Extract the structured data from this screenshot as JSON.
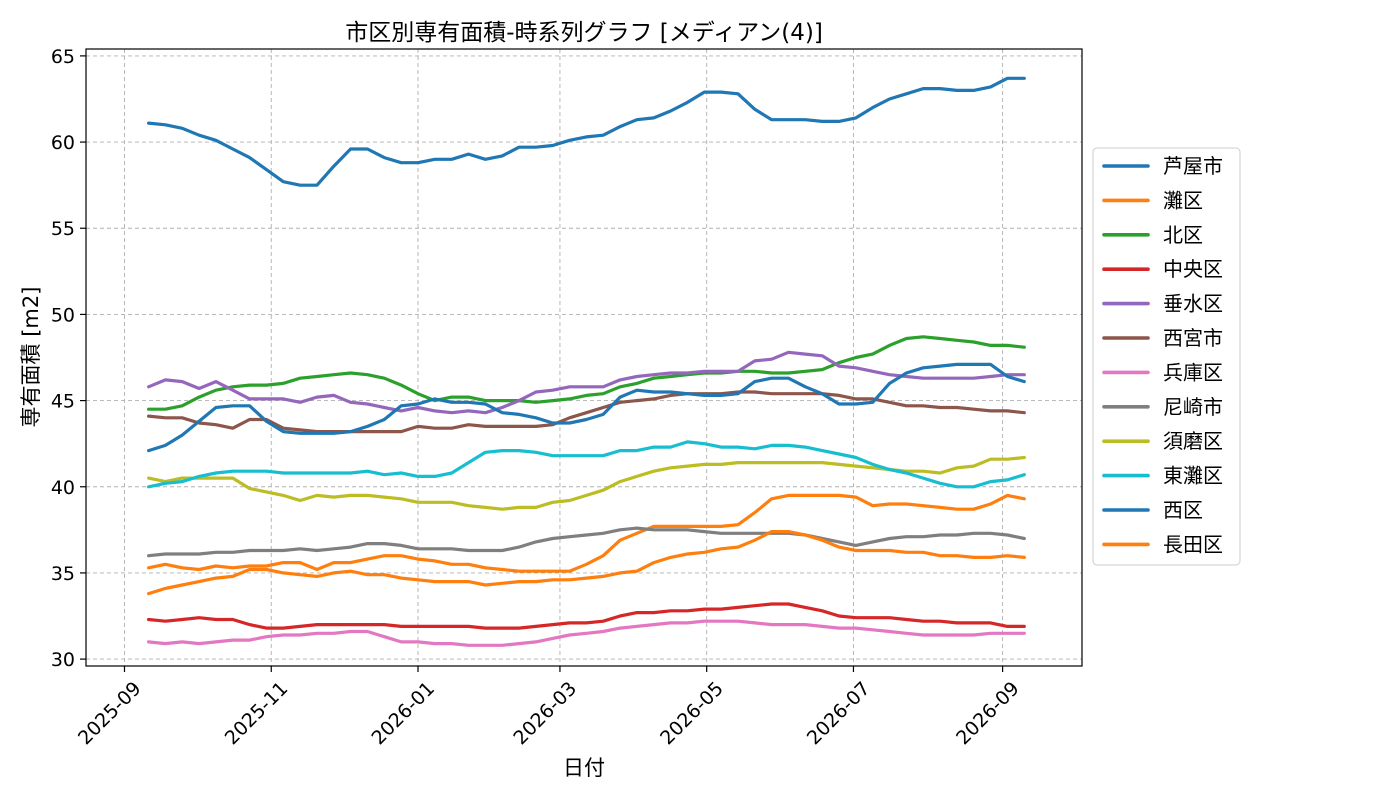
{
  "chart_data": {
    "type": "line",
    "title": "市区別専有面積-時系列グラフ [メディアン(4)]",
    "xlabel": "日付",
    "ylabel": "専有面積 [m2]",
    "ylim": [
      29.6,
      65.4
    ],
    "yticks": [
      30,
      35,
      40,
      45,
      50,
      55,
      60,
      65
    ],
    "xlim": [
      "2025-08-16",
      "2026-10-04"
    ],
    "xticks": [
      {
        "date": "2025-09-01",
        "label": "2025-09"
      },
      {
        "date": "2025-11-01",
        "label": "2025-11"
      },
      {
        "date": "2026-01-01",
        "label": "2026-01"
      },
      {
        "date": "2026-03-01",
        "label": "2026-03"
      },
      {
        "date": "2026-05-01",
        "label": "2026-05"
      },
      {
        "date": "2026-07-01",
        "label": "2026-07"
      },
      {
        "date": "2026-09-01",
        "label": "2026-09"
      }
    ],
    "grid": true,
    "legend_position": "right",
    "x": [
      "2025-09-11",
      "2025-09-18",
      "2025-09-25",
      "2025-10-02",
      "2025-10-09",
      "2025-10-16",
      "2025-10-23",
      "2025-10-30",
      "2025-11-06",
      "2025-11-13",
      "2025-11-20",
      "2025-11-27",
      "2025-12-04",
      "2025-12-11",
      "2025-12-18",
      "2025-12-25",
      "2026-01-01",
      "2026-01-08",
      "2026-01-15",
      "2026-01-22",
      "2026-01-29",
      "2026-02-05",
      "2026-02-12",
      "2026-02-19",
      "2026-02-26",
      "2026-03-05",
      "2026-03-12",
      "2026-03-19",
      "2026-03-26",
      "2026-04-02",
      "2026-04-09",
      "2026-04-16",
      "2026-04-23",
      "2026-04-30",
      "2026-05-07",
      "2026-05-14",
      "2026-05-21",
      "2026-05-28",
      "2026-06-04",
      "2026-06-11",
      "2026-06-18",
      "2026-06-25",
      "2026-07-02",
      "2026-07-09",
      "2026-07-16",
      "2026-07-23",
      "2026-07-30",
      "2026-08-06",
      "2026-08-13",
      "2026-08-20",
      "2026-08-27",
      "2026-09-03",
      "2026-09-10"
    ],
    "series": [
      {
        "name": "芦屋市",
        "color": "#1f77b4",
        "values": [
          61.1,
          61.0,
          60.8,
          60.4,
          60.1,
          59.6,
          59.1,
          58.4,
          57.7,
          57.5,
          57.5,
          58.6,
          59.6,
          59.6,
          59.1,
          58.8,
          58.8,
          59.0,
          59.0,
          59.3,
          59.0,
          59.2,
          59.7,
          59.7,
          59.8,
          60.1,
          60.3,
          60.4,
          60.9,
          61.3,
          61.4,
          61.8,
          62.3,
          62.9,
          62.9,
          62.8,
          61.9,
          61.3,
          61.3,
          61.3,
          61.2,
          61.2,
          61.4,
          62.0,
          62.5,
          62.8,
          63.1,
          63.1,
          63.0,
          63.0,
          63.2,
          63.7,
          63.7
        ]
      },
      {
        "name": "灘区",
        "color": "#ff7f0e",
        "values": [
          35.3,
          35.5,
          35.3,
          35.2,
          35.4,
          35.3,
          35.4,
          35.4,
          35.6,
          35.6,
          35.2,
          35.6,
          35.6,
          35.8,
          36.0,
          36.0,
          35.8,
          35.7,
          35.5,
          35.5,
          35.3,
          35.2,
          35.1,
          35.1,
          35.1,
          35.1,
          35.5,
          36.0,
          36.9,
          37.3,
          37.7,
          37.7,
          37.7,
          37.7,
          37.7,
          37.8,
          38.5,
          39.3,
          39.5,
          39.5,
          39.5,
          39.5,
          39.4,
          38.9,
          39.0,
          39.0,
          38.9,
          38.8,
          38.7,
          38.7,
          39.0,
          39.5,
          39.3
        ]
      },
      {
        "name": "北区",
        "color": "#2ca02c",
        "values": [
          44.5,
          44.5,
          44.7,
          45.2,
          45.6,
          45.8,
          45.9,
          45.9,
          46.0,
          46.3,
          46.4,
          46.5,
          46.6,
          46.5,
          46.3,
          45.9,
          45.4,
          45.0,
          45.2,
          45.2,
          45.0,
          45.0,
          45.0,
          44.9,
          45.0,
          45.1,
          45.3,
          45.4,
          45.8,
          46.0,
          46.3,
          46.4,
          46.5,
          46.6,
          46.6,
          46.7,
          46.7,
          46.6,
          46.6,
          46.7,
          46.8,
          47.2,
          47.5,
          47.7,
          48.2,
          48.6,
          48.7,
          48.6,
          48.5,
          48.4,
          48.2,
          48.2,
          48.1
        ]
      },
      {
        "name": "中央区",
        "color": "#d62728",
        "values": [
          32.3,
          32.2,
          32.3,
          32.4,
          32.3,
          32.3,
          32.0,
          31.8,
          31.8,
          31.9,
          32.0,
          32.0,
          32.0,
          32.0,
          32.0,
          31.9,
          31.9,
          31.9,
          31.9,
          31.9,
          31.8,
          31.8,
          31.8,
          31.9,
          32.0,
          32.1,
          32.1,
          32.2,
          32.5,
          32.7,
          32.7,
          32.8,
          32.8,
          32.9,
          32.9,
          33.0,
          33.1,
          33.2,
          33.2,
          33.0,
          32.8,
          32.5,
          32.4,
          32.4,
          32.4,
          32.3,
          32.2,
          32.2,
          32.1,
          32.1,
          32.1,
          31.9,
          31.9
        ]
      },
      {
        "name": "垂水区",
        "color": "#9467bd",
        "values": [
          45.8,
          46.2,
          46.1,
          45.7,
          46.1,
          45.6,
          45.1,
          45.1,
          45.1,
          44.9,
          45.2,
          45.3,
          44.9,
          44.8,
          44.6,
          44.4,
          44.6,
          44.4,
          44.3,
          44.4,
          44.3,
          44.6,
          45.0,
          45.5,
          45.6,
          45.8,
          45.8,
          45.8,
          46.2,
          46.4,
          46.5,
          46.6,
          46.6,
          46.7,
          46.7,
          46.7,
          47.3,
          47.4,
          47.8,
          47.7,
          47.6,
          47.0,
          46.9,
          46.7,
          46.5,
          46.4,
          46.3,
          46.3,
          46.3,
          46.3,
          46.4,
          46.5,
          46.5
        ]
      },
      {
        "name": "西宮市",
        "color": "#8c564b",
        "values": [
          44.1,
          44.0,
          44.0,
          43.7,
          43.6,
          43.4,
          43.9,
          43.9,
          43.4,
          43.3,
          43.2,
          43.2,
          43.2,
          43.2,
          43.2,
          43.2,
          43.5,
          43.4,
          43.4,
          43.6,
          43.5,
          43.5,
          43.5,
          43.5,
          43.6,
          44.0,
          44.3,
          44.6,
          44.9,
          45.0,
          45.1,
          45.3,
          45.4,
          45.4,
          45.4,
          45.5,
          45.5,
          45.4,
          45.4,
          45.4,
          45.4,
          45.3,
          45.1,
          45.1,
          44.9,
          44.7,
          44.7,
          44.6,
          44.6,
          44.5,
          44.4,
          44.4,
          44.3
        ]
      },
      {
        "name": "兵庫区",
        "color": "#e377c2",
        "values": [
          31.0,
          30.9,
          31.0,
          30.9,
          31.0,
          31.1,
          31.1,
          31.3,
          31.4,
          31.4,
          31.5,
          31.5,
          31.6,
          31.6,
          31.3,
          31.0,
          31.0,
          30.9,
          30.9,
          30.8,
          30.8,
          30.8,
          30.9,
          31.0,
          31.2,
          31.4,
          31.5,
          31.6,
          31.8,
          31.9,
          32.0,
          32.1,
          32.1,
          32.2,
          32.2,
          32.2,
          32.1,
          32.0,
          32.0,
          32.0,
          31.9,
          31.8,
          31.8,
          31.7,
          31.6,
          31.5,
          31.4,
          31.4,
          31.4,
          31.4,
          31.5,
          31.5,
          31.5
        ]
      },
      {
        "name": "尼崎市",
        "color": "#7f7f7f",
        "values": [
          36.0,
          36.1,
          36.1,
          36.1,
          36.2,
          36.2,
          36.3,
          36.3,
          36.3,
          36.4,
          36.3,
          36.4,
          36.5,
          36.7,
          36.7,
          36.6,
          36.4,
          36.4,
          36.4,
          36.3,
          36.3,
          36.3,
          36.5,
          36.8,
          37.0,
          37.1,
          37.2,
          37.3,
          37.5,
          37.6,
          37.5,
          37.5,
          37.5,
          37.4,
          37.3,
          37.3,
          37.3,
          37.3,
          37.3,
          37.2,
          37.0,
          36.8,
          36.6,
          36.8,
          37.0,
          37.1,
          37.1,
          37.2,
          37.2,
          37.3,
          37.3,
          37.2,
          37.0
        ]
      },
      {
        "name": "須磨区",
        "color": "#bcbd22",
        "values": [
          40.5,
          40.3,
          40.5,
          40.5,
          40.5,
          40.5,
          39.9,
          39.7,
          39.5,
          39.2,
          39.5,
          39.4,
          39.5,
          39.5,
          39.4,
          39.3,
          39.1,
          39.1,
          39.1,
          38.9,
          38.8,
          38.7,
          38.8,
          38.8,
          39.1,
          39.2,
          39.5,
          39.8,
          40.3,
          40.6,
          40.9,
          41.1,
          41.2,
          41.3,
          41.3,
          41.4,
          41.4,
          41.4,
          41.4,
          41.4,
          41.4,
          41.3,
          41.2,
          41.1,
          41.0,
          40.9,
          40.9,
          40.8,
          41.1,
          41.2,
          41.6,
          41.6,
          41.7
        ]
      },
      {
        "name": "東灘区",
        "color": "#17becf",
        "values": [
          40.0,
          40.2,
          40.3,
          40.6,
          40.8,
          40.9,
          40.9,
          40.9,
          40.8,
          40.8,
          40.8,
          40.8,
          40.8,
          40.9,
          40.7,
          40.8,
          40.6,
          40.6,
          40.8,
          41.4,
          42.0,
          42.1,
          42.1,
          42.0,
          41.8,
          41.8,
          41.8,
          41.8,
          42.1,
          42.1,
          42.3,
          42.3,
          42.6,
          42.5,
          42.3,
          42.3,
          42.2,
          42.4,
          42.4,
          42.3,
          42.1,
          41.9,
          41.7,
          41.3,
          41.0,
          40.8,
          40.5,
          40.2,
          40.0,
          40.0,
          40.3,
          40.4,
          40.7
        ]
      },
      {
        "name": "西区",
        "color": "#1f77b4",
        "values": [
          42.1,
          42.4,
          43.0,
          43.8,
          44.6,
          44.7,
          44.7,
          43.8,
          43.2,
          43.1,
          43.1,
          43.1,
          43.2,
          43.5,
          43.9,
          44.7,
          44.8,
          45.1,
          44.9,
          44.9,
          44.8,
          44.3,
          44.2,
          44.0,
          43.7,
          43.7,
          43.9,
          44.2,
          45.2,
          45.6,
          45.5,
          45.5,
          45.4,
          45.3,
          45.3,
          45.4,
          46.1,
          46.3,
          46.3,
          45.8,
          45.4,
          44.8,
          44.8,
          44.9,
          46.0,
          46.6,
          46.9,
          47.0,
          47.1,
          47.1,
          47.1,
          46.4,
          46.1
        ]
      },
      {
        "name": "長田区",
        "color": "#ff7f0e",
        "values": [
          33.8,
          34.1,
          34.3,
          34.5,
          34.7,
          34.8,
          35.2,
          35.2,
          35.0,
          34.9,
          34.8,
          35.0,
          35.1,
          34.9,
          34.9,
          34.7,
          34.6,
          34.5,
          34.5,
          34.5,
          34.3,
          34.4,
          34.5,
          34.5,
          34.6,
          34.6,
          34.7,
          34.8,
          35.0,
          35.1,
          35.6,
          35.9,
          36.1,
          36.2,
          36.4,
          36.5,
          36.9,
          37.4,
          37.4,
          37.2,
          36.9,
          36.5,
          36.3,
          36.3,
          36.3,
          36.2,
          36.2,
          36.0,
          36.0,
          35.9,
          35.9,
          36.0,
          35.9
        ]
      }
    ]
  }
}
